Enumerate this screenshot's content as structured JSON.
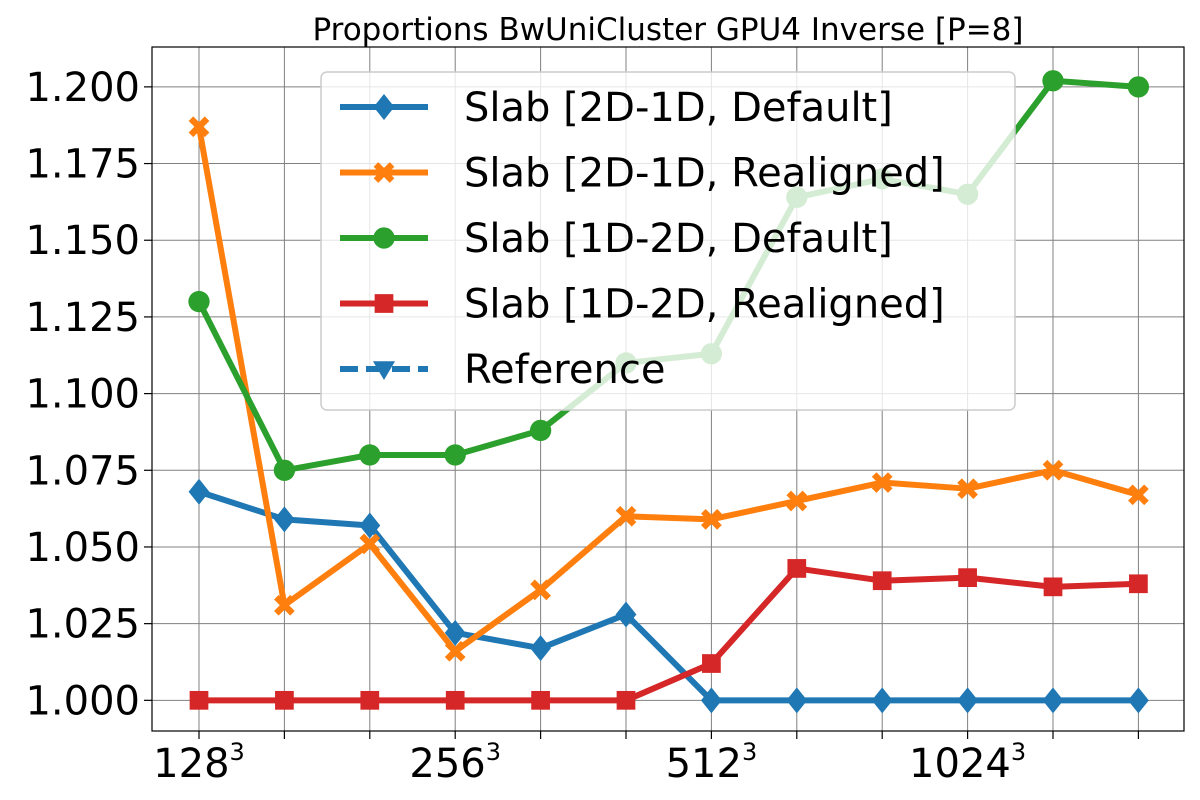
{
  "chart_data": {
    "type": "line",
    "title": "Proportions BwUniCluster GPU4 Inverse [P=8]",
    "xlabel": "",
    "ylabel": "",
    "ylim": [
      0.99,
      1.213
    ],
    "grid": true,
    "legend_position": "top-right",
    "x_ticks": [
      {
        "base": "128",
        "exp": "3"
      },
      {
        "base": "",
        "exp": ""
      },
      {
        "base": "",
        "exp": ""
      },
      {
        "base": "256",
        "exp": "3"
      },
      {
        "base": "",
        "exp": ""
      },
      {
        "base": "",
        "exp": ""
      },
      {
        "base": "512",
        "exp": "3"
      },
      {
        "base": "",
        "exp": ""
      },
      {
        "base": "",
        "exp": ""
      },
      {
        "base": "1024",
        "exp": "3"
      },
      {
        "base": "",
        "exp": ""
      },
      {
        "base": "",
        "exp": ""
      }
    ],
    "y_ticks": [
      "1.000",
      "1.025",
      "1.050",
      "1.075",
      "1.100",
      "1.125",
      "1.150",
      "1.175",
      "1.200"
    ],
    "y_tick_values": [
      1.0,
      1.025,
      1.05,
      1.075,
      1.1,
      1.125,
      1.15,
      1.175,
      1.2
    ],
    "series": [
      {
        "name": "Slab [2D-1D, Default]",
        "color": "#1f77b4",
        "marker": "diamond",
        "dashed": false,
        "values": [
          1.068,
          1.059,
          1.057,
          1.022,
          1.017,
          1.028,
          1.0,
          1.0,
          1.0,
          1.0,
          1.0,
          1.0
        ]
      },
      {
        "name": "Slab [2D-1D, Realigned]",
        "color": "#ff7f0e",
        "marker": "x",
        "dashed": false,
        "values": [
          1.187,
          1.031,
          1.051,
          1.016,
          1.036,
          1.06,
          1.059,
          1.065,
          1.071,
          1.069,
          1.075,
          1.067
        ]
      },
      {
        "name": "Slab [1D-2D, Default]",
        "color": "#2ca02c",
        "marker": "circle",
        "dashed": false,
        "values": [
          1.13,
          1.075,
          1.08,
          1.08,
          1.088,
          1.11,
          1.113,
          1.164,
          1.17,
          1.165,
          1.202,
          1.2
        ]
      },
      {
        "name": "Slab [1D-2D, Realigned]",
        "color": "#d62728",
        "marker": "square",
        "dashed": false,
        "values": [
          1.0,
          1.0,
          1.0,
          1.0,
          1.0,
          1.0,
          1.012,
          1.043,
          1.039,
          1.04,
          1.037,
          1.038
        ]
      },
      {
        "name": "Reference",
        "color": "#1f77b4",
        "marker": "triangle-down",
        "dashed": true,
        "values": []
      }
    ]
  }
}
